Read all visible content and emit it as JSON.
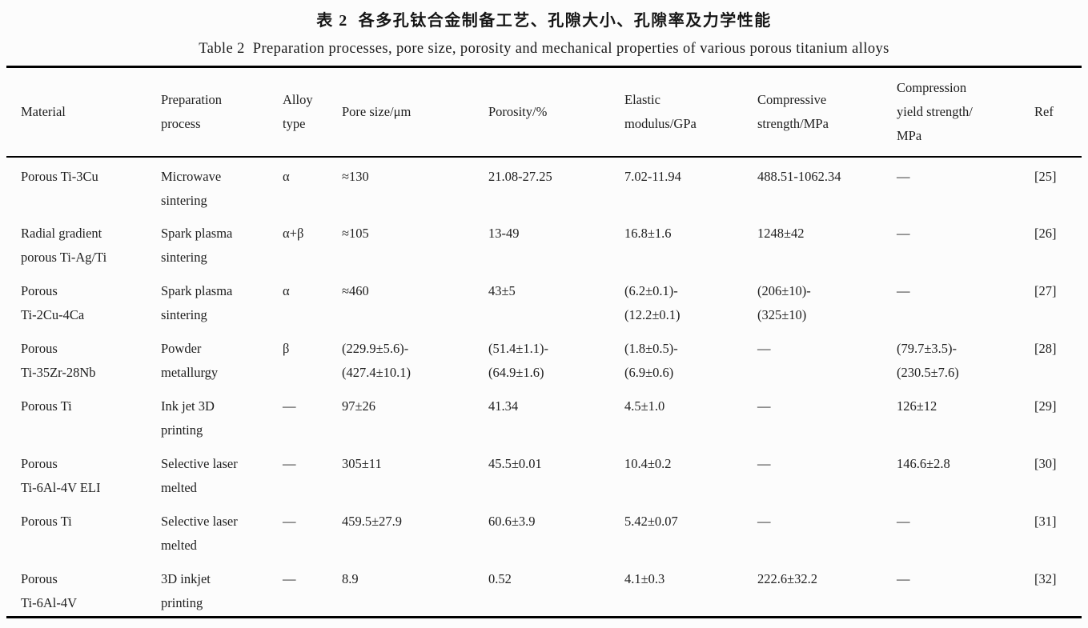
{
  "table": {
    "title_zh": "表 2  各多孔钛合金制备工艺、孔隙大小、孔隙率及力学性能",
    "title_en": "Table 2  Preparation processes, pore size, porosity and mechanical properties of various porous titanium alloys",
    "columns": [
      "Material",
      "Preparation\nprocess",
      "Alloy\ntype",
      "Pore size/μm",
      "Porosity/%",
      "Elastic\nmodulus/GPa",
      "Compressive\nstrength/MPa",
      "Compression\nyield strength/\nMPa",
      "Ref"
    ],
    "rows": [
      {
        "cells": [
          "Porous Ti-3Cu",
          "Microwave\nsintering",
          "α",
          "≈130",
          "21.08-27.25",
          "7.02-11.94",
          "488.51-1062.34",
          "—",
          "[25]"
        ]
      },
      {
        "cells": [
          "Radial gradient\nporous Ti-Ag/Ti",
          "Spark plasma\nsintering",
          "α+β",
          "≈105",
          "13-49",
          "16.8±1.6",
          "1248±42",
          "—",
          "[26]"
        ]
      },
      {
        "cells": [
          "Porous\nTi-2Cu-4Ca",
          "Spark plasma\nsintering",
          "α",
          "≈460",
          "43±5",
          "(6.2±0.1)-\n(12.2±0.1)",
          "(206±10)-\n(325±10)",
          "—",
          "[27]"
        ]
      },
      {
        "cells": [
          "Porous\nTi-35Zr-28Nb",
          "Powder\nmetallurgy",
          "β",
          "(229.9±5.6)-\n(427.4±10.1)",
          "(51.4±1.1)-\n(64.9±1.6)",
          "(1.8±0.5)-\n(6.9±0.6)",
          "—",
          "(79.7±3.5)-\n(230.5±7.6)",
          "[28]"
        ]
      },
      {
        "cells": [
          "Porous Ti",
          "Ink jet 3D\nprinting",
          "—",
          "97±26",
          "41.34",
          "4.5±1.0",
          "—",
          "126±12",
          "[29]"
        ]
      },
      {
        "cells": [
          "Porous\nTi-6Al-4V ELI",
          "Selective laser\nmelted",
          "—",
          "305±11",
          "45.5±0.01",
          "10.4±0.2",
          "—",
          "146.6±2.8",
          "[30]"
        ]
      },
      {
        "cells": [
          "Porous Ti",
          "Selective laser\nmelted",
          "—",
          "459.5±27.9",
          "60.6±3.9",
          "5.42±0.07",
          "—",
          "—",
          "[31]"
        ]
      },
      {
        "cells": [
          "Porous\nTi-6Al-4V",
          "3D inkjet\nprinting",
          "—",
          "8.9",
          "0.52",
          "4.1±0.3",
          "222.6±32.2",
          "—",
          "[32]"
        ]
      }
    ]
  }
}
